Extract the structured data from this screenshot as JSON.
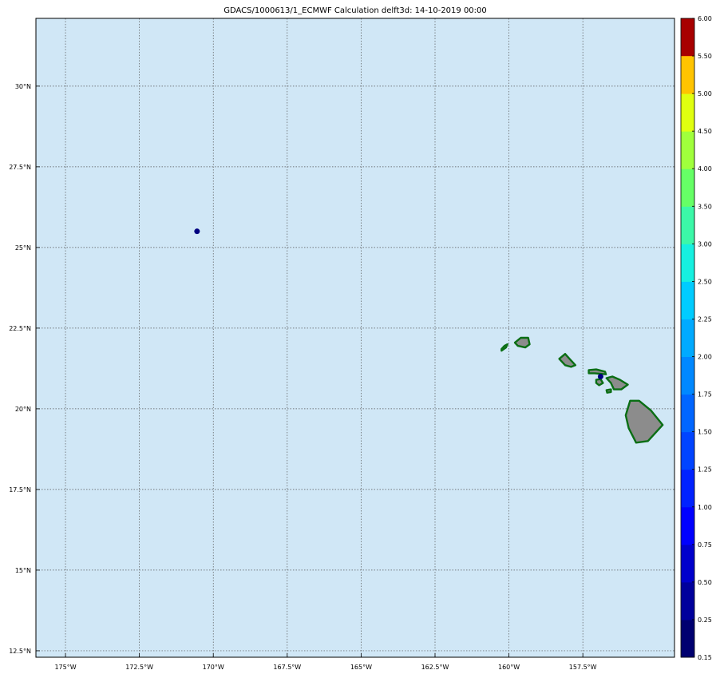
{
  "title": "GDACS/1000613/1_ECMWF Calculation delft3d: 14-10-2019 00:00",
  "colors": {
    "ocean": "#d0e7f6",
    "land_fill": "#8c8c8c",
    "coast": "#0a6e14",
    "grid": "#555555",
    "surge_marker": "#000080"
  },
  "map": {
    "lon_range": [
      -176,
      -154.4
    ],
    "lat_range": [
      12.3,
      32.1
    ],
    "lon_ticks": [
      {
        "value": -175,
        "label": "175°W"
      },
      {
        "value": -172.5,
        "label": "172.5°W"
      },
      {
        "value": -170,
        "label": "170°W"
      },
      {
        "value": -167.5,
        "label": "167.5°W"
      },
      {
        "value": -165,
        "label": "165°W"
      },
      {
        "value": -162.5,
        "label": "162.5°W"
      },
      {
        "value": -160,
        "label": "160°W"
      },
      {
        "value": -157.5,
        "label": "157.5°W"
      }
    ],
    "lat_ticks": [
      {
        "value": 30,
        "label": "30°N"
      },
      {
        "value": 27.5,
        "label": "27.5°N"
      },
      {
        "value": 25,
        "label": "25°N"
      },
      {
        "value": 22.5,
        "label": "22.5°N"
      },
      {
        "value": 20,
        "label": "20°N"
      },
      {
        "value": 17.5,
        "label": "17.5°N"
      },
      {
        "value": 15,
        "label": "15°N"
      },
      {
        "value": 12.5,
        "label": "12.5°N"
      }
    ],
    "grid": true,
    "surge_points": [
      {
        "lon": -170.55,
        "lat": 25.5
      },
      {
        "lon": -156.9,
        "lat": 21.0
      }
    ],
    "islands": [
      {
        "name": "Niihau",
        "points": [
          [
            -160.25,
            21.8
          ],
          [
            -160.1,
            21.9
          ],
          [
            -160.05,
            22.0
          ],
          [
            -160.15,
            21.95
          ],
          [
            -160.25,
            21.85
          ]
        ]
      },
      {
        "name": "Kauai",
        "points": [
          [
            -159.8,
            22.05
          ],
          [
            -159.6,
            22.2
          ],
          [
            -159.35,
            22.2
          ],
          [
            -159.3,
            22.0
          ],
          [
            -159.45,
            21.9
          ],
          [
            -159.7,
            21.95
          ]
        ]
      },
      {
        "name": "Oahu",
        "points": [
          [
            -158.3,
            21.55
          ],
          [
            -158.1,
            21.7
          ],
          [
            -157.95,
            21.55
          ],
          [
            -157.75,
            21.35
          ],
          [
            -157.9,
            21.3
          ],
          [
            -158.1,
            21.35
          ],
          [
            -158.2,
            21.45
          ]
        ]
      },
      {
        "name": "Molokai",
        "points": [
          [
            -157.3,
            21.2
          ],
          [
            -157.05,
            21.22
          ],
          [
            -156.75,
            21.15
          ],
          [
            -156.72,
            21.07
          ],
          [
            -157.1,
            21.1
          ],
          [
            -157.3,
            21.1
          ]
        ]
      },
      {
        "name": "Lanai",
        "points": [
          [
            -157.05,
            20.9
          ],
          [
            -156.9,
            20.92
          ],
          [
            -156.82,
            20.8
          ],
          [
            -156.95,
            20.73
          ],
          [
            -157.05,
            20.8
          ]
        ]
      },
      {
        "name": "Maui",
        "points": [
          [
            -156.7,
            20.95
          ],
          [
            -156.5,
            21.0
          ],
          [
            -156.25,
            20.9
          ],
          [
            -155.98,
            20.75
          ],
          [
            -156.2,
            20.6
          ],
          [
            -156.45,
            20.6
          ],
          [
            -156.55,
            20.8
          ]
        ]
      },
      {
        "name": "Kahoolawe",
        "points": [
          [
            -156.7,
            20.58
          ],
          [
            -156.55,
            20.6
          ],
          [
            -156.55,
            20.52
          ],
          [
            -156.68,
            20.5
          ]
        ]
      },
      {
        "name": "Hawaii",
        "points": [
          [
            -155.9,
            20.25
          ],
          [
            -155.6,
            20.25
          ],
          [
            -155.2,
            19.95
          ],
          [
            -154.8,
            19.5
          ],
          [
            -155.3,
            19.0
          ],
          [
            -155.7,
            18.95
          ],
          [
            -155.95,
            19.4
          ],
          [
            -156.05,
            19.8
          ]
        ]
      }
    ]
  },
  "colorbar": {
    "levels": [
      0.15,
      0.25,
      0.5,
      0.75,
      1.0,
      1.25,
      1.5,
      1.75,
      2.0,
      2.25,
      2.5,
      3.0,
      3.5,
      4.0,
      4.5,
      5.0,
      5.5,
      6.0
    ],
    "labels": [
      "0.15",
      "0.25",
      "0.50",
      "0.75",
      "1.00",
      "1.25",
      "1.50",
      "1.75",
      "2.00",
      "2.25",
      "2.50",
      "3.00",
      "3.50",
      "4.00",
      "4.50",
      "5.00",
      "5.50",
      "6.00"
    ],
    "colors": [
      "#000070",
      "#00009c",
      "#0000cc",
      "#0000ff",
      "#0022ff",
      "#0044ff",
      "#0066ff",
      "#0088ff",
      "#00aaff",
      "#00ccff",
      "#16f0e0",
      "#3cf8a8",
      "#66ff66",
      "#a0ff3c",
      "#e0ff10",
      "#ffc400",
      "#ff7800",
      "#ff2000",
      "#a80000"
    ]
  }
}
